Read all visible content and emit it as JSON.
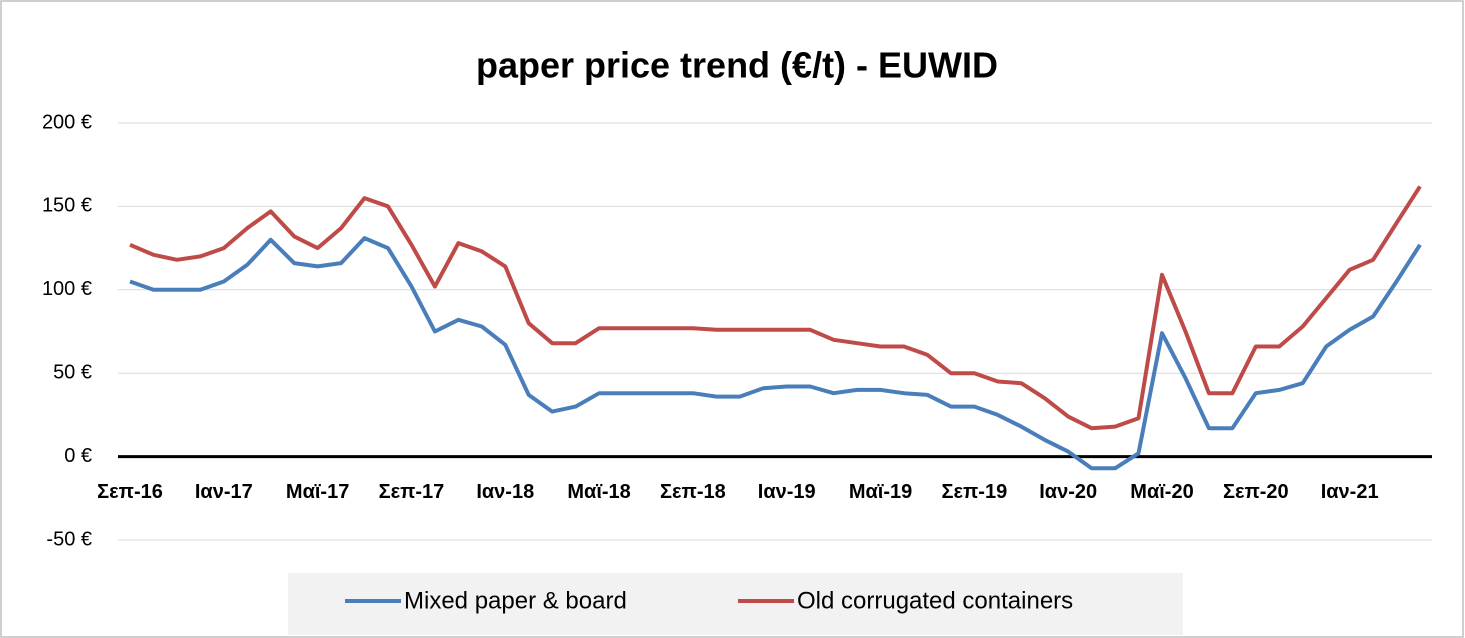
{
  "chart_data": {
    "type": "line",
    "title": "paper price trend (€/t) - EUWID",
    "categories": [
      "Σεπ-16",
      null,
      null,
      null,
      "Ιαν-17",
      null,
      null,
      null,
      "Μαϊ-17",
      null,
      null,
      null,
      "Σεπ-17",
      null,
      null,
      null,
      "Ιαν-18",
      null,
      null,
      null,
      "Μαϊ-18",
      null,
      null,
      null,
      "Σεπ-18",
      null,
      null,
      null,
      "Ιαν-19",
      null,
      null,
      null,
      "Μαϊ-19",
      null,
      null,
      null,
      "Σεπ-19",
      null,
      null,
      null,
      "Ιαν-20",
      null,
      null,
      null,
      "Μαϊ-20",
      null,
      null,
      null,
      "Σεπ-20",
      null,
      null,
      null,
      "Ιαν-21",
      null,
      null,
      null
    ],
    "series": [
      {
        "name": "Mixed paper & board",
        "color": "#4a7ebb",
        "values": [
          105,
          100,
          100,
          100,
          105,
          115,
          130,
          116,
          114,
          116,
          131,
          125,
          102,
          75,
          82,
          78,
          67,
          37,
          27,
          30,
          38,
          38,
          38,
          38,
          38,
          36,
          36,
          41,
          42,
          42,
          38,
          40,
          40,
          38,
          37,
          30,
          30,
          25,
          18,
          10,
          3,
          -7,
          -7,
          2,
          74,
          47,
          17,
          17,
          38,
          40,
          44,
          66,
          76,
          84,
          105,
          127
        ]
      },
      {
        "name": "Old corrugated containers",
        "color": "#be4b48",
        "values": [
          127,
          121,
          118,
          120,
          125,
          137,
          147,
          132,
          125,
          137,
          155,
          150,
          127,
          102,
          128,
          123,
          114,
          80,
          68,
          68,
          77,
          77,
          77,
          77,
          77,
          76,
          76,
          76,
          76,
          76,
          70,
          68,
          66,
          66,
          61,
          50,
          50,
          45,
          44,
          35,
          24,
          17,
          18,
          23,
          109,
          75,
          38,
          38,
          66,
          66,
          78,
          95,
          112,
          118,
          140,
          162
        ]
      }
    ],
    "ylim": [
      -50,
      200
    ],
    "yticks": [
      {
        "value": -50,
        "label": "-50 €"
      },
      {
        "value": 0,
        "label": "0 €"
      },
      {
        "value": 50,
        "label": "50 €"
      },
      {
        "value": 100,
        "label": "100 €"
      },
      {
        "value": 150,
        "label": "150 €"
      },
      {
        "value": 200,
        "label": "200 €"
      }
    ],
    "grid": true,
    "legend": "bottom"
  }
}
